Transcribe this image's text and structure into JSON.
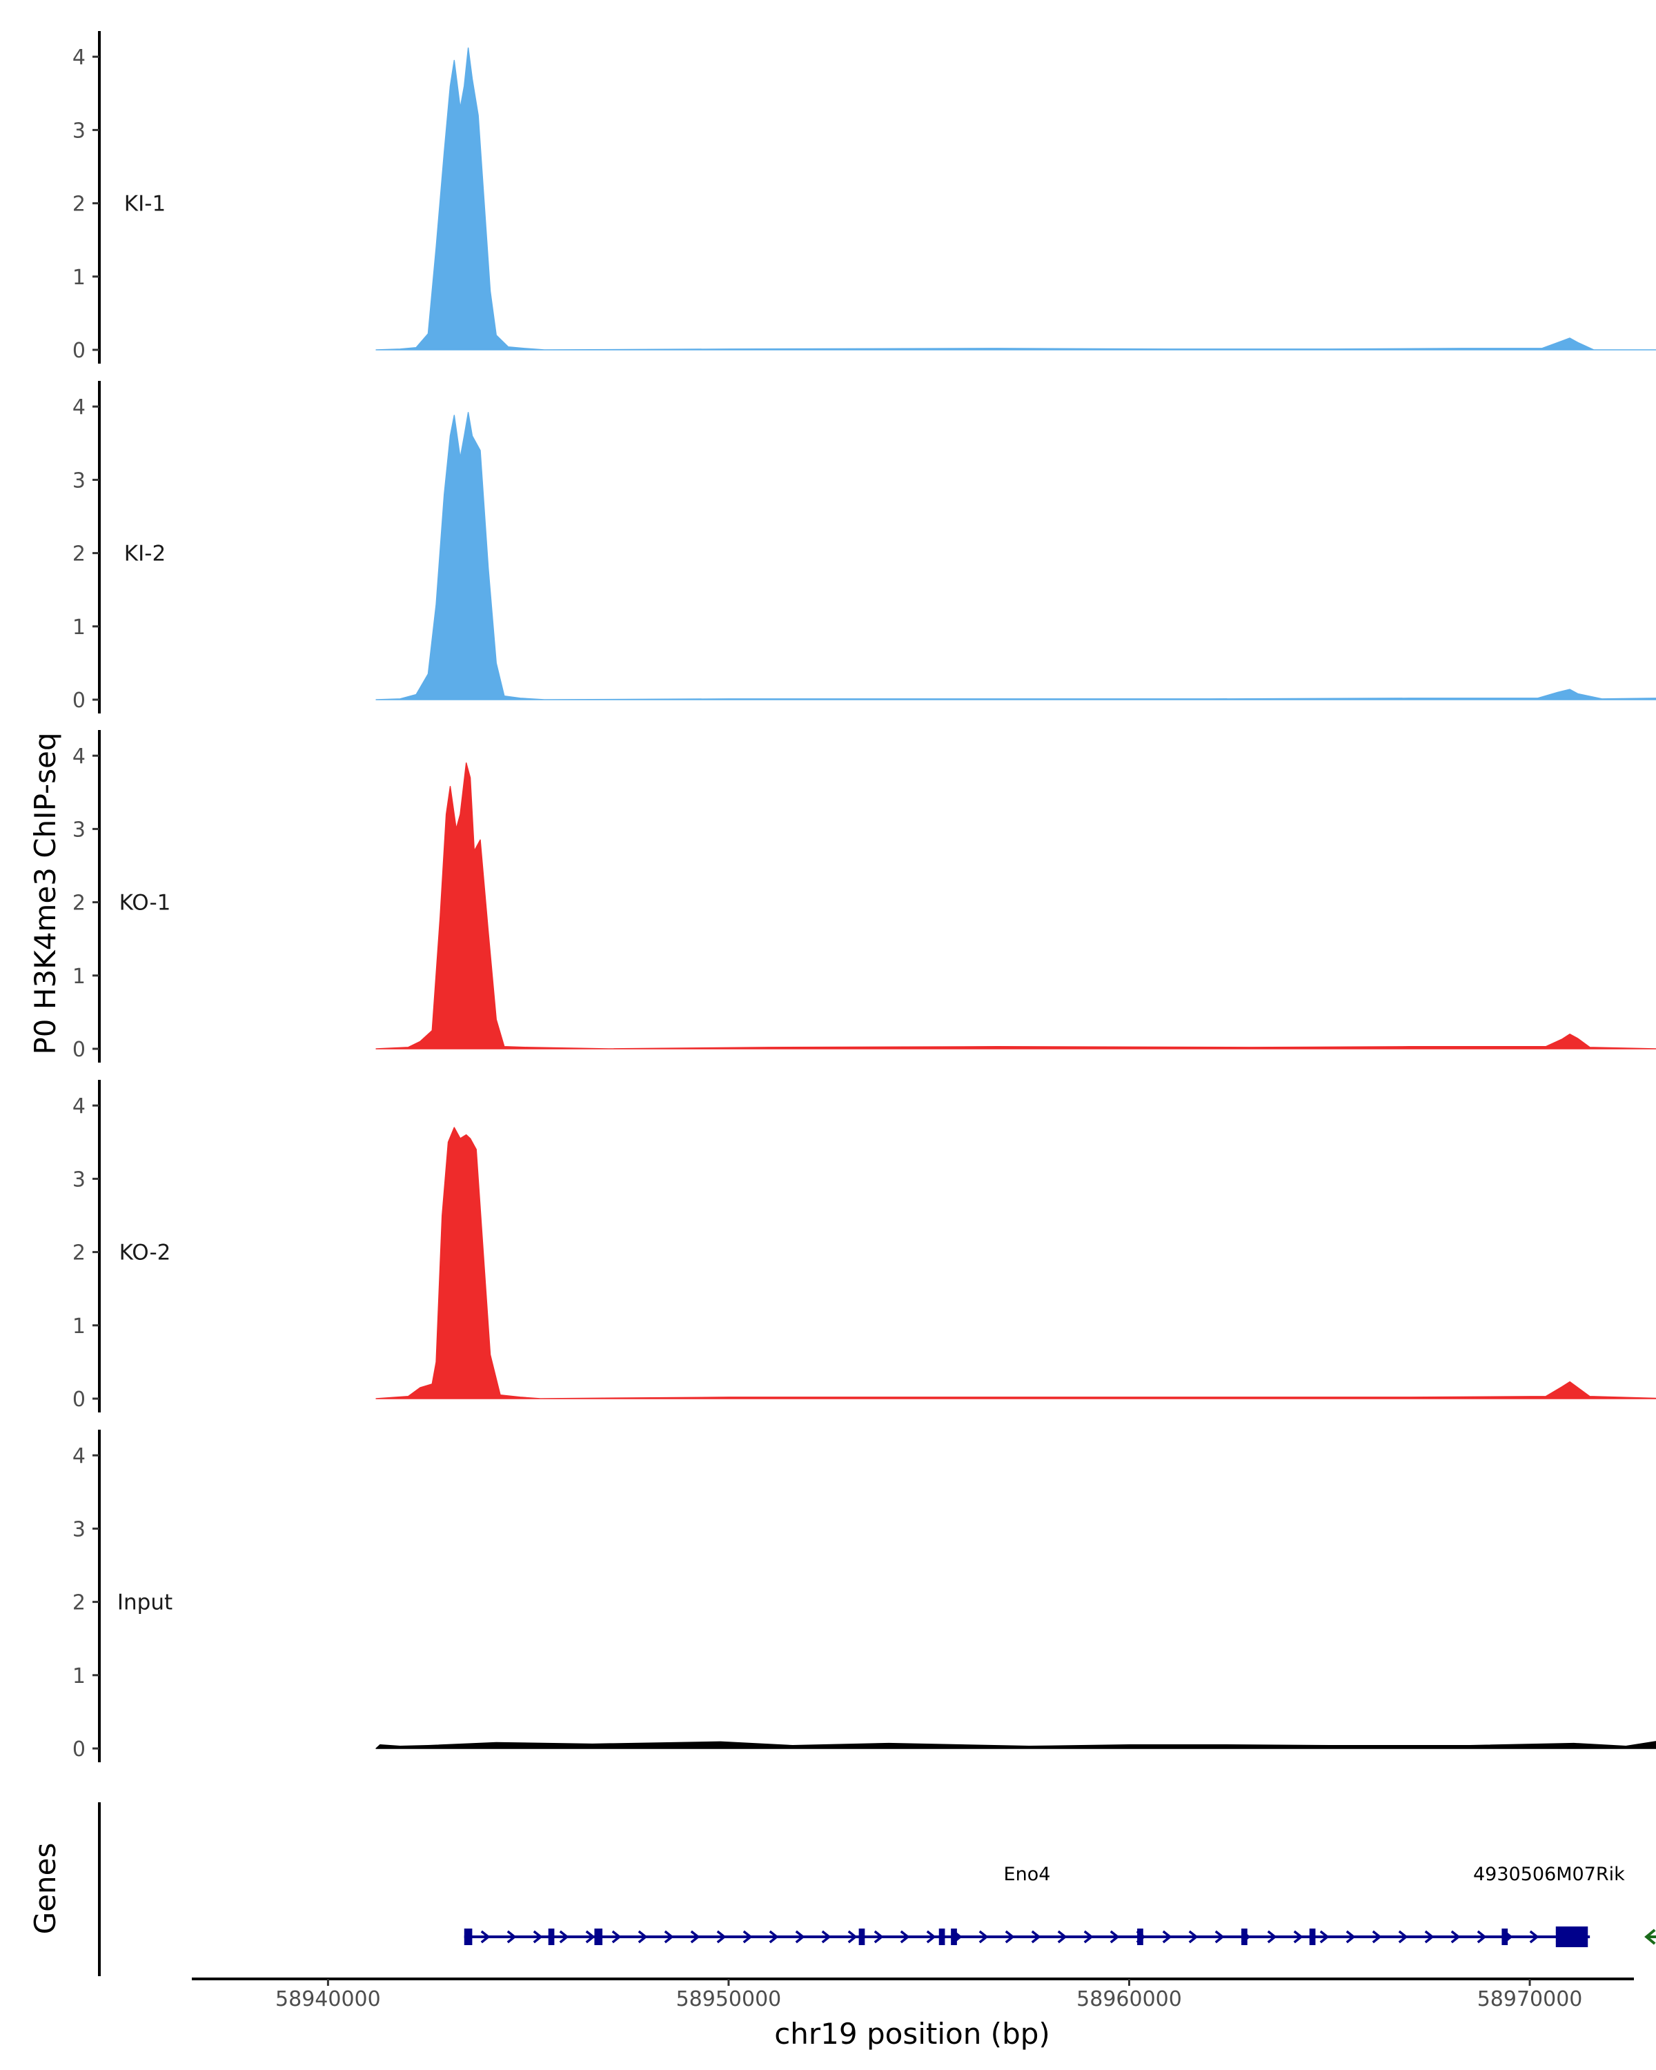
{
  "chart_data": {
    "type": "area",
    "genome": "chr19",
    "ylabel": "P0 H3K4me3 ChIP-seq",
    "xlabel": "chr19 position (bp)",
    "xlim": [
      58936600,
      58972600
    ],
    "ylim": [
      0,
      4.35
    ],
    "y_ticks": [
      0,
      1,
      2,
      3,
      4
    ],
    "x_ticks": [
      58940000,
      58950000,
      58960000,
      58970000
    ],
    "x_tick_labels": [
      "58940000",
      "58950000",
      "58960000",
      "58970000"
    ],
    "grid": false,
    "legend": "none",
    "tracks": [
      {
        "name": "KI-1",
        "color": "#5dade9",
        "points": [
          [
            58941200,
            0.0
          ],
          [
            58941800,
            0.01
          ],
          [
            58942200,
            0.03
          ],
          [
            58942500,
            0.22
          ],
          [
            58942700,
            1.4
          ],
          [
            58942900,
            2.7
          ],
          [
            58943050,
            3.6
          ],
          [
            58943150,
            3.95
          ],
          [
            58943300,
            3.3
          ],
          [
            58943400,
            3.6
          ],
          [
            58943500,
            4.12
          ],
          [
            58943600,
            3.7
          ],
          [
            58943750,
            3.2
          ],
          [
            58943900,
            2.0
          ],
          [
            58944050,
            0.8
          ],
          [
            58944200,
            0.2
          ],
          [
            58944500,
            0.04
          ],
          [
            58944900,
            0.02
          ],
          [
            58945400,
            0.0
          ],
          [
            58950000,
            0.01
          ],
          [
            58956700,
            0.02
          ],
          [
            58961000,
            0.01
          ],
          [
            58965000,
            0.01
          ],
          [
            58968300,
            0.02
          ],
          [
            58970300,
            0.02
          ],
          [
            58970800,
            0.12
          ],
          [
            58971000,
            0.16
          ],
          [
            58971200,
            0.1
          ],
          [
            58971600,
            0.0
          ],
          [
            58973400,
            0.0
          ]
        ]
      },
      {
        "name": "KI-2",
        "color": "#5dade9",
        "points": [
          [
            58941200,
            0.0
          ],
          [
            58941800,
            0.01
          ],
          [
            58942200,
            0.07
          ],
          [
            58942500,
            0.35
          ],
          [
            58942700,
            1.3
          ],
          [
            58942900,
            2.8
          ],
          [
            58943050,
            3.6
          ],
          [
            58943150,
            3.88
          ],
          [
            58943300,
            3.3
          ],
          [
            58943400,
            3.6
          ],
          [
            58943500,
            3.92
          ],
          [
            58943600,
            3.6
          ],
          [
            58943800,
            3.4
          ],
          [
            58944000,
            1.8
          ],
          [
            58944200,
            0.5
          ],
          [
            58944400,
            0.05
          ],
          [
            58944800,
            0.02
          ],
          [
            58945400,
            0.0
          ],
          [
            58950000,
            0.01
          ],
          [
            58955000,
            0.01
          ],
          [
            58962000,
            0.01
          ],
          [
            58967000,
            0.02
          ],
          [
            58970200,
            0.02
          ],
          [
            58970700,
            0.1
          ],
          [
            58971000,
            0.14
          ],
          [
            58971200,
            0.08
          ],
          [
            58971800,
            0.01
          ],
          [
            58973200,
            0.02
          ],
          [
            58973800,
            0.0
          ]
        ]
      },
      {
        "name": "KO-1",
        "color": "#ee2b2b",
        "points": [
          [
            58941200,
            0.0
          ],
          [
            58942000,
            0.02
          ],
          [
            58942300,
            0.1
          ],
          [
            58942600,
            0.25
          ],
          [
            58942800,
            1.8
          ],
          [
            58942950,
            3.2
          ],
          [
            58943050,
            3.58
          ],
          [
            58943200,
            3.0
          ],
          [
            58943300,
            3.2
          ],
          [
            58943450,
            3.9
          ],
          [
            58943550,
            3.7
          ],
          [
            58943650,
            2.7
          ],
          [
            58943800,
            2.85
          ],
          [
            58944000,
            1.6
          ],
          [
            58944200,
            0.4
          ],
          [
            58944400,
            0.03
          ],
          [
            58945000,
            0.02
          ],
          [
            58947000,
            0.0
          ],
          [
            58951000,
            0.02
          ],
          [
            58956700,
            0.03
          ],
          [
            58963000,
            0.02
          ],
          [
            58967000,
            0.03
          ],
          [
            58970400,
            0.03
          ],
          [
            58970800,
            0.13
          ],
          [
            58971000,
            0.2
          ],
          [
            58971200,
            0.14
          ],
          [
            58971500,
            0.02
          ],
          [
            58973200,
            0.0
          ]
        ]
      },
      {
        "name": "KO-2",
        "color": "#ee2b2b",
        "points": [
          [
            58941200,
            0.0
          ],
          [
            58942000,
            0.03
          ],
          [
            58942300,
            0.15
          ],
          [
            58942600,
            0.2
          ],
          [
            58942700,
            0.5
          ],
          [
            58942850,
            2.5
          ],
          [
            58943000,
            3.5
          ],
          [
            58943150,
            3.7
          ],
          [
            58943300,
            3.55
          ],
          [
            58943450,
            3.6
          ],
          [
            58943550,
            3.55
          ],
          [
            58943700,
            3.4
          ],
          [
            58943850,
            2.2
          ],
          [
            58944050,
            0.6
          ],
          [
            58944300,
            0.05
          ],
          [
            58944800,
            0.02
          ],
          [
            58945300,
            0.0
          ],
          [
            58950000,
            0.02
          ],
          [
            58955000,
            0.02
          ],
          [
            58961000,
            0.02
          ],
          [
            58967000,
            0.02
          ],
          [
            58970400,
            0.03
          ],
          [
            58970800,
            0.16
          ],
          [
            58971000,
            0.23
          ],
          [
            58971200,
            0.15
          ],
          [
            58971500,
            0.03
          ],
          [
            58973500,
            0.0
          ]
        ]
      },
      {
        "name": "Input",
        "color": "#000000",
        "points": [
          [
            58941200,
            0.0
          ],
          [
            58941300,
            0.05
          ],
          [
            58941800,
            0.03
          ],
          [
            58942500,
            0.04
          ],
          [
            58944200,
            0.08
          ],
          [
            58946600,
            0.06
          ],
          [
            58949800,
            0.09
          ],
          [
            58951600,
            0.04
          ],
          [
            58954000,
            0.07
          ],
          [
            58957500,
            0.03
          ],
          [
            58960000,
            0.05
          ],
          [
            58962200,
            0.05
          ],
          [
            58965000,
            0.04
          ],
          [
            58968500,
            0.04
          ],
          [
            58971100,
            0.07
          ],
          [
            58972400,
            0.03
          ],
          [
            58973200,
            0.1
          ],
          [
            58973600,
            0.04
          ],
          [
            58974000,
            0.0
          ]
        ]
      }
    ],
    "genes": {
      "title": "Genes",
      "items": [
        {
          "name": "Eno4",
          "start": 58943400,
          "end": 58971500,
          "strand": "+",
          "color": "#00008b",
          "exons": [
            [
              58943400,
              58943600
            ],
            [
              58945500,
              58945650
            ],
            [
              58946650,
              58946850
            ],
            [
              58953250,
              58953400
            ],
            [
              58955250,
              58955400
            ],
            [
              58955550,
              58955700
            ],
            [
              58960200,
              58960350
            ],
            [
              58962800,
              58962950
            ],
            [
              58964500,
              58964650
            ],
            [
              58969300,
              58969450
            ],
            [
              58970650,
              58971450
            ]
          ]
        },
        {
          "name": "4930506M07Rik",
          "start": 58973000,
          "end": 58973600,
          "strand": "-",
          "color": "#1a6b1a",
          "exons": []
        }
      ]
    }
  }
}
